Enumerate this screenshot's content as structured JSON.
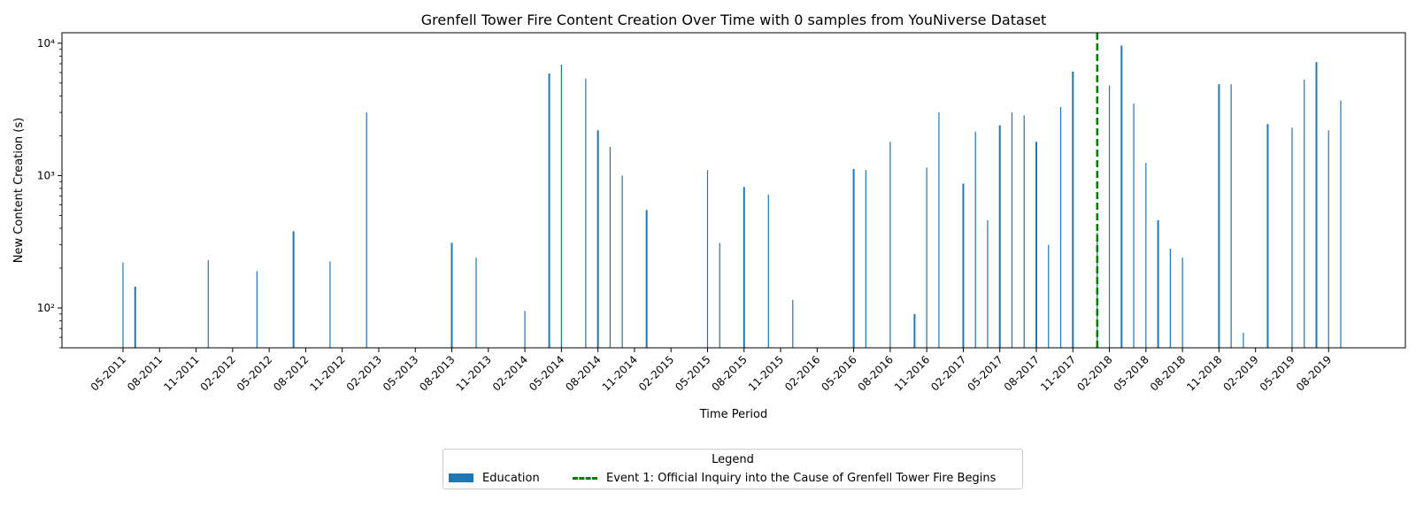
{
  "chart_data": {
    "type": "bar",
    "title": "Grenfell Tower Fire Content Creation Over Time with 0 samples from YouNiverse Dataset",
    "xlabel": "Time Period",
    "ylabel": "New Content Creation (s)",
    "yscale": "log",
    "ylim": [
      50,
      12000
    ],
    "yticks": [
      {
        "value": 100,
        "label": "10²"
      },
      {
        "value": 1000,
        "label": "10³"
      },
      {
        "value": 10000,
        "label": "10⁴"
      }
    ],
    "xtick_labels": [
      "05-2011",
      "08-2011",
      "11-2011",
      "02-2012",
      "05-2012",
      "08-2012",
      "11-2012",
      "02-2013",
      "05-2013",
      "08-2013",
      "11-2013",
      "02-2014",
      "05-2014",
      "08-2014",
      "11-2014",
      "02-2015",
      "05-2015",
      "08-2015",
      "11-2015",
      "02-2016",
      "05-2016",
      "08-2016",
      "11-2016",
      "02-2017",
      "05-2017",
      "08-2017",
      "11-2017",
      "02-2018",
      "05-2018",
      "08-2018",
      "11-2018",
      "02-2019",
      "05-2019",
      "08-2019"
    ],
    "series": [
      {
        "name": "Education",
        "color": "#1f77b4",
        "points": [
          {
            "month": 0,
            "value": 220
          },
          {
            "month": 1,
            "value": 145
          },
          {
            "month": 7,
            "value": 230
          },
          {
            "month": 11,
            "value": 190
          },
          {
            "month": 14,
            "value": 380
          },
          {
            "month": 17,
            "value": 225
          },
          {
            "month": 20,
            "value": 3000
          },
          {
            "month": 27,
            "value": 310
          },
          {
            "month": 29,
            "value": 240
          },
          {
            "month": 33,
            "value": 95
          },
          {
            "month": 35,
            "value": 5900
          },
          {
            "month": 36,
            "value": 6900
          },
          {
            "month": 38,
            "value": 5400
          },
          {
            "month": 39,
            "value": 2200
          },
          {
            "month": 40,
            "value": 1650
          },
          {
            "month": 41,
            "value": 1000
          },
          {
            "month": 43,
            "value": 550
          },
          {
            "month": 48,
            "value": 1100
          },
          {
            "month": 49,
            "value": 310
          },
          {
            "month": 51,
            "value": 820
          },
          {
            "month": 53,
            "value": 720
          },
          {
            "month": 55,
            "value": 115
          },
          {
            "month": 60,
            "value": 1120
          },
          {
            "month": 61,
            "value": 1100
          },
          {
            "month": 63,
            "value": 1800
          },
          {
            "month": 65,
            "value": 90
          },
          {
            "month": 66,
            "value": 1150
          },
          {
            "month": 67,
            "value": 3000
          },
          {
            "month": 69,
            "value": 870
          },
          {
            "month": 70,
            "value": 2150
          },
          {
            "month": 71,
            "value": 460
          },
          {
            "month": 72,
            "value": 2400
          },
          {
            "month": 73,
            "value": 3000
          },
          {
            "month": 74,
            "value": 2850
          },
          {
            "month": 75,
            "value": 1800
          },
          {
            "month": 76,
            "value": 300
          },
          {
            "month": 77,
            "value": 3300
          },
          {
            "month": 78,
            "value": 6100
          },
          {
            "month": 80,
            "value": 370
          },
          {
            "month": 81,
            "value": 4800
          },
          {
            "month": 82,
            "value": 9600
          },
          {
            "month": 83,
            "value": 3500
          },
          {
            "month": 84,
            "value": 1250
          },
          {
            "month": 85,
            "value": 460
          },
          {
            "month": 86,
            "value": 280
          },
          {
            "month": 87,
            "value": 240
          },
          {
            "month": 90,
            "value": 4900
          },
          {
            "month": 91,
            "value": 4900
          },
          {
            "month": 92,
            "value": 65
          },
          {
            "month": 94,
            "value": 2450
          },
          {
            "month": 96,
            "value": 2300
          },
          {
            "month": 97,
            "value": 5300
          },
          {
            "month": 98,
            "value": 7200
          },
          {
            "month": 99,
            "value": 2200
          },
          {
            "month": 100,
            "value": 3700
          }
        ]
      }
    ],
    "events": [
      {
        "label": "Event 1: Official Inquiry into the Cause of Grenfell Tower Fire Begins",
        "month": 80,
        "color": "#008000",
        "style": "dashed"
      }
    ],
    "legend": {
      "title": "Legend",
      "position": "bottom-center",
      "items": [
        {
          "label": "Education",
          "kind": "bar",
          "color": "#1f77b4"
        },
        {
          "label": "Event 1: Official Inquiry into the Cause of Grenfell Tower Fire Begins",
          "kind": "dashed-line",
          "color": "#008000"
        }
      ]
    },
    "grid": false
  }
}
